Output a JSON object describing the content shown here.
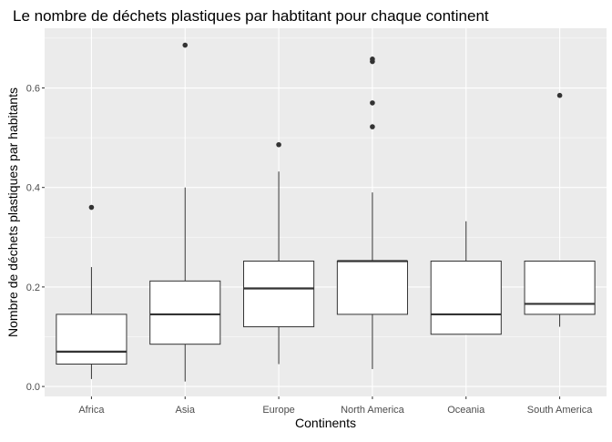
{
  "chart_data": {
    "type": "boxplot",
    "title": "Le nombre de déchets plastiques par habtitant pour chaque continent",
    "xlabel": "Continents",
    "ylabel": "Nombre de déchets plastiques par habitants",
    "ylim": [
      -0.02,
      0.72
    ],
    "y_ticks": [
      0.0,
      0.2,
      0.4,
      0.6
    ],
    "y_tick_labels": [
      "0.0",
      "0.2",
      "0.4",
      "0.6"
    ],
    "grid": true,
    "categories": [
      "Africa",
      "Asia",
      "Europe",
      "North America",
      "Oceania",
      "South America"
    ],
    "boxes": [
      {
        "category": "Africa",
        "whisker_low": 0.015,
        "q1": 0.045,
        "median": 0.07,
        "q3": 0.145,
        "whisker_high": 0.24,
        "outliers": [
          0.36
        ]
      },
      {
        "category": "Asia",
        "whisker_low": 0.01,
        "q1": 0.085,
        "median": 0.145,
        "q3": 0.212,
        "whisker_high": 0.4,
        "outliers": [
          0.686
        ]
      },
      {
        "category": "Europe",
        "whisker_low": 0.045,
        "q1": 0.12,
        "median": 0.197,
        "q3": 0.252,
        "whisker_high": 0.432,
        "outliers": [
          0.486
        ]
      },
      {
        "category": "North America",
        "whisker_low": 0.035,
        "q1": 0.145,
        "median": 0.252,
        "q3": 0.252,
        "whisker_high": 0.39,
        "outliers": [
          0.522,
          0.57,
          0.653,
          0.658
        ]
      },
      {
        "category": "Oceania",
        "whisker_low": 0.105,
        "q1": 0.105,
        "median": 0.145,
        "q3": 0.252,
        "whisker_high": 0.332,
        "outliers": []
      },
      {
        "category": "South America",
        "whisker_low": 0.12,
        "q1": 0.145,
        "median": 0.166,
        "q3": 0.252,
        "whisker_high": 0.252,
        "outliers": [
          0.585
        ]
      }
    ],
    "colors": {
      "panel_background": "#ebebeb",
      "grid_major": "#ffffff",
      "box_fill": "#ffffff",
      "box_stroke": "#333333",
      "outlier": "#333333",
      "tick": "#333333"
    }
  }
}
